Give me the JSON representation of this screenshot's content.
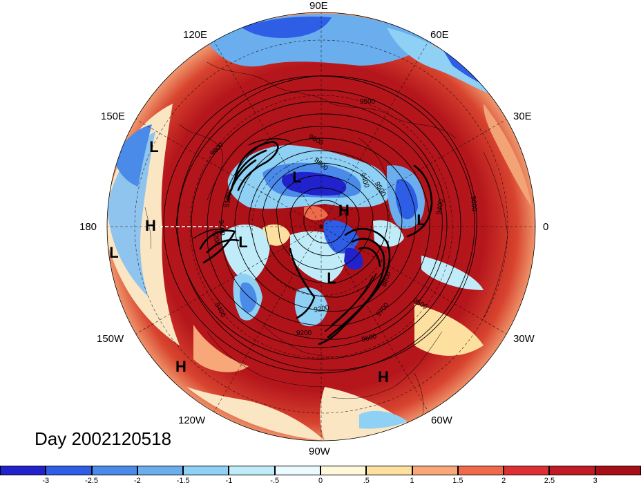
{
  "map": {
    "projection": "north-polar-stereographic",
    "field_type": "anomaly-shaded-with-height-contours",
    "longitude_labels": [
      {
        "text": "90E",
        "lon": 90
      },
      {
        "text": "60E",
        "lon": 60
      },
      {
        "text": "30E",
        "lon": 30
      },
      {
        "text": "0",
        "lon": 0
      },
      {
        "text": "30W",
        "lon": -30
      },
      {
        "text": "60W",
        "lon": -60
      },
      {
        "text": "90W",
        "lon": -90
      },
      {
        "text": "120W",
        "lon": -120
      },
      {
        "text": "150W",
        "lon": -150
      },
      {
        "text": "180",
        "lon": 180
      },
      {
        "text": "150E",
        "lon": 150
      },
      {
        "text": "120E",
        "lon": 120
      }
    ],
    "contour_labels": [
      "9500",
      "9500",
      "9600",
      "9600",
      "9600",
      "9400",
      "9200",
      "9100",
      "8600",
      "9200",
      "9400",
      "9500",
      "9600",
      "9400",
      "9200",
      "8800",
      "9700",
      "9400"
    ],
    "pressure_centers": [
      {
        "type": "L"
      },
      {
        "type": "L"
      },
      {
        "type": "H"
      },
      {
        "type": "L"
      },
      {
        "type": "L"
      },
      {
        "type": "L"
      },
      {
        "type": "H"
      },
      {
        "type": "L"
      },
      {
        "type": "H"
      },
      {
        "type": "H"
      }
    ],
    "colors": {
      "ocean_warm": "#a50f15",
      "cold": "#2b3fd6",
      "neutral": "#fdf5e0"
    }
  },
  "date_label": "Day 2002120518",
  "colorbar": {
    "ticks": [
      "-3",
      "-2.5",
      "-2",
      "-1.5",
      "-1",
      "-.5",
      "0",
      ".5",
      "1",
      "1.5",
      "2",
      "2.5",
      "3"
    ],
    "colors": [
      "#2222cc",
      "#2e5ee6",
      "#4a8ae8",
      "#6aaeee",
      "#8fd0f5",
      "#c0ecfa",
      "#eafaff",
      "#fff8da",
      "#fde0a0",
      "#f8a878",
      "#ef6a4a",
      "#dd3035",
      "#c01a25",
      "#a50f15"
    ]
  }
}
